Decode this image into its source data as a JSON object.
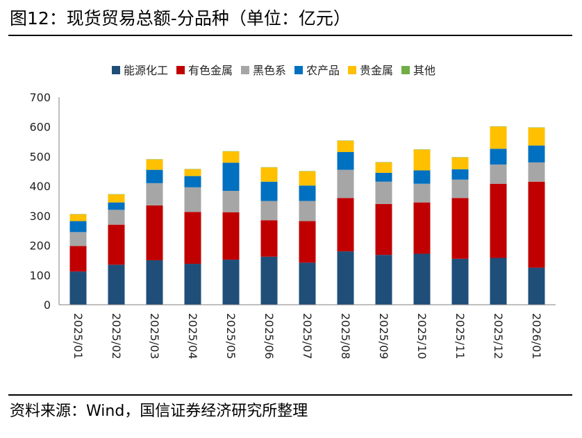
{
  "header": {
    "title": "图12：现货贸易总额-分品种（单位：亿元）"
  },
  "footer": {
    "source": "资料来源：Wind，国信证券经济研究所整理"
  },
  "chart_data": {
    "type": "bar",
    "stacked": true,
    "title": "现货贸易总额-分品种",
    "unit": "亿元",
    "xlabel": "",
    "ylabel": "",
    "ylim": [
      0,
      700
    ],
    "yticks": [
      0,
      100,
      200,
      300,
      400,
      500,
      600,
      700
    ],
    "legend_position": "top",
    "categories": [
      "2025/01",
      "2025/02",
      "2025/03",
      "2025/04",
      "2025/05",
      "2025/06",
      "2025/07",
      "2025/08",
      "2025/09",
      "2025/10",
      "2025/11",
      "2025/12",
      "2026/01"
    ],
    "series": [
      {
        "name": "能源化工",
        "color": "#1f4e79",
        "values": [
          112,
          135,
          150,
          138,
          152,
          162,
          142,
          180,
          168,
          172,
          155,
          158,
          125
        ]
      },
      {
        "name": "有色金属",
        "color": "#c00000",
        "values": [
          86,
          135,
          185,
          175,
          160,
          123,
          140,
          180,
          172,
          173,
          205,
          250,
          290
        ]
      },
      {
        "name": "黑色系",
        "color": "#a6a6a6",
        "values": [
          47,
          50,
          75,
          83,
          72,
          65,
          68,
          95,
          75,
          63,
          62,
          65,
          65
        ]
      },
      {
        "name": "农产品",
        "color": "#0070c0",
        "values": [
          37,
          25,
          45,
          38,
          95,
          65,
          52,
          60,
          30,
          45,
          35,
          53,
          57
        ]
      },
      {
        "name": "贵金属",
        "color": "#ffc000",
        "values": [
          23,
          27,
          35,
          23,
          38,
          48,
          48,
          38,
          35,
          70,
          40,
          75,
          60
        ]
      },
      {
        "name": "其他",
        "color": "#70ad47",
        "values": [
          1,
          1,
          1,
          1,
          1,
          1,
          1,
          1,
          1,
          1,
          1,
          1,
          1
        ]
      }
    ]
  }
}
